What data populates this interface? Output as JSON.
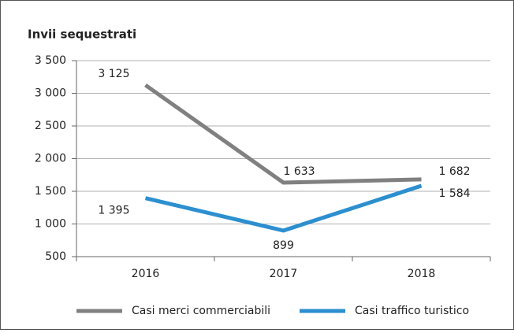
{
  "chart_data": {
    "type": "line",
    "title": "Invii sequestrati",
    "categories": [
      "2016",
      "2017",
      "2018"
    ],
    "series": [
      {
        "name": "Casi merci commerciabili",
        "color": "#808080",
        "values": [
          3125,
          1633,
          1682
        ],
        "value_labels": [
          "3 125",
          "1 633",
          "1 682"
        ]
      },
      {
        "name": "Casi traffico turistico",
        "color": "#2b8fd0",
        "values": [
          1395,
          899,
          1584
        ],
        "value_labels": [
          "1 395",
          "899",
          "1 584"
        ]
      }
    ],
    "ylim": [
      500,
      3500
    ],
    "yticks": [
      500,
      {
        "value": 1000,
        "label": "1 000"
      },
      {
        "value": 1500,
        "label": "1 500"
      },
      {
        "value": 2000,
        "label": "2 000"
      },
      {
        "value": 2500,
        "label": "2 500"
      },
      {
        "value": 3000,
        "label": "3 000"
      },
      {
        "value": 3500,
        "label": "3 500"
      }
    ],
    "grid": true,
    "legend": "bottom"
  }
}
